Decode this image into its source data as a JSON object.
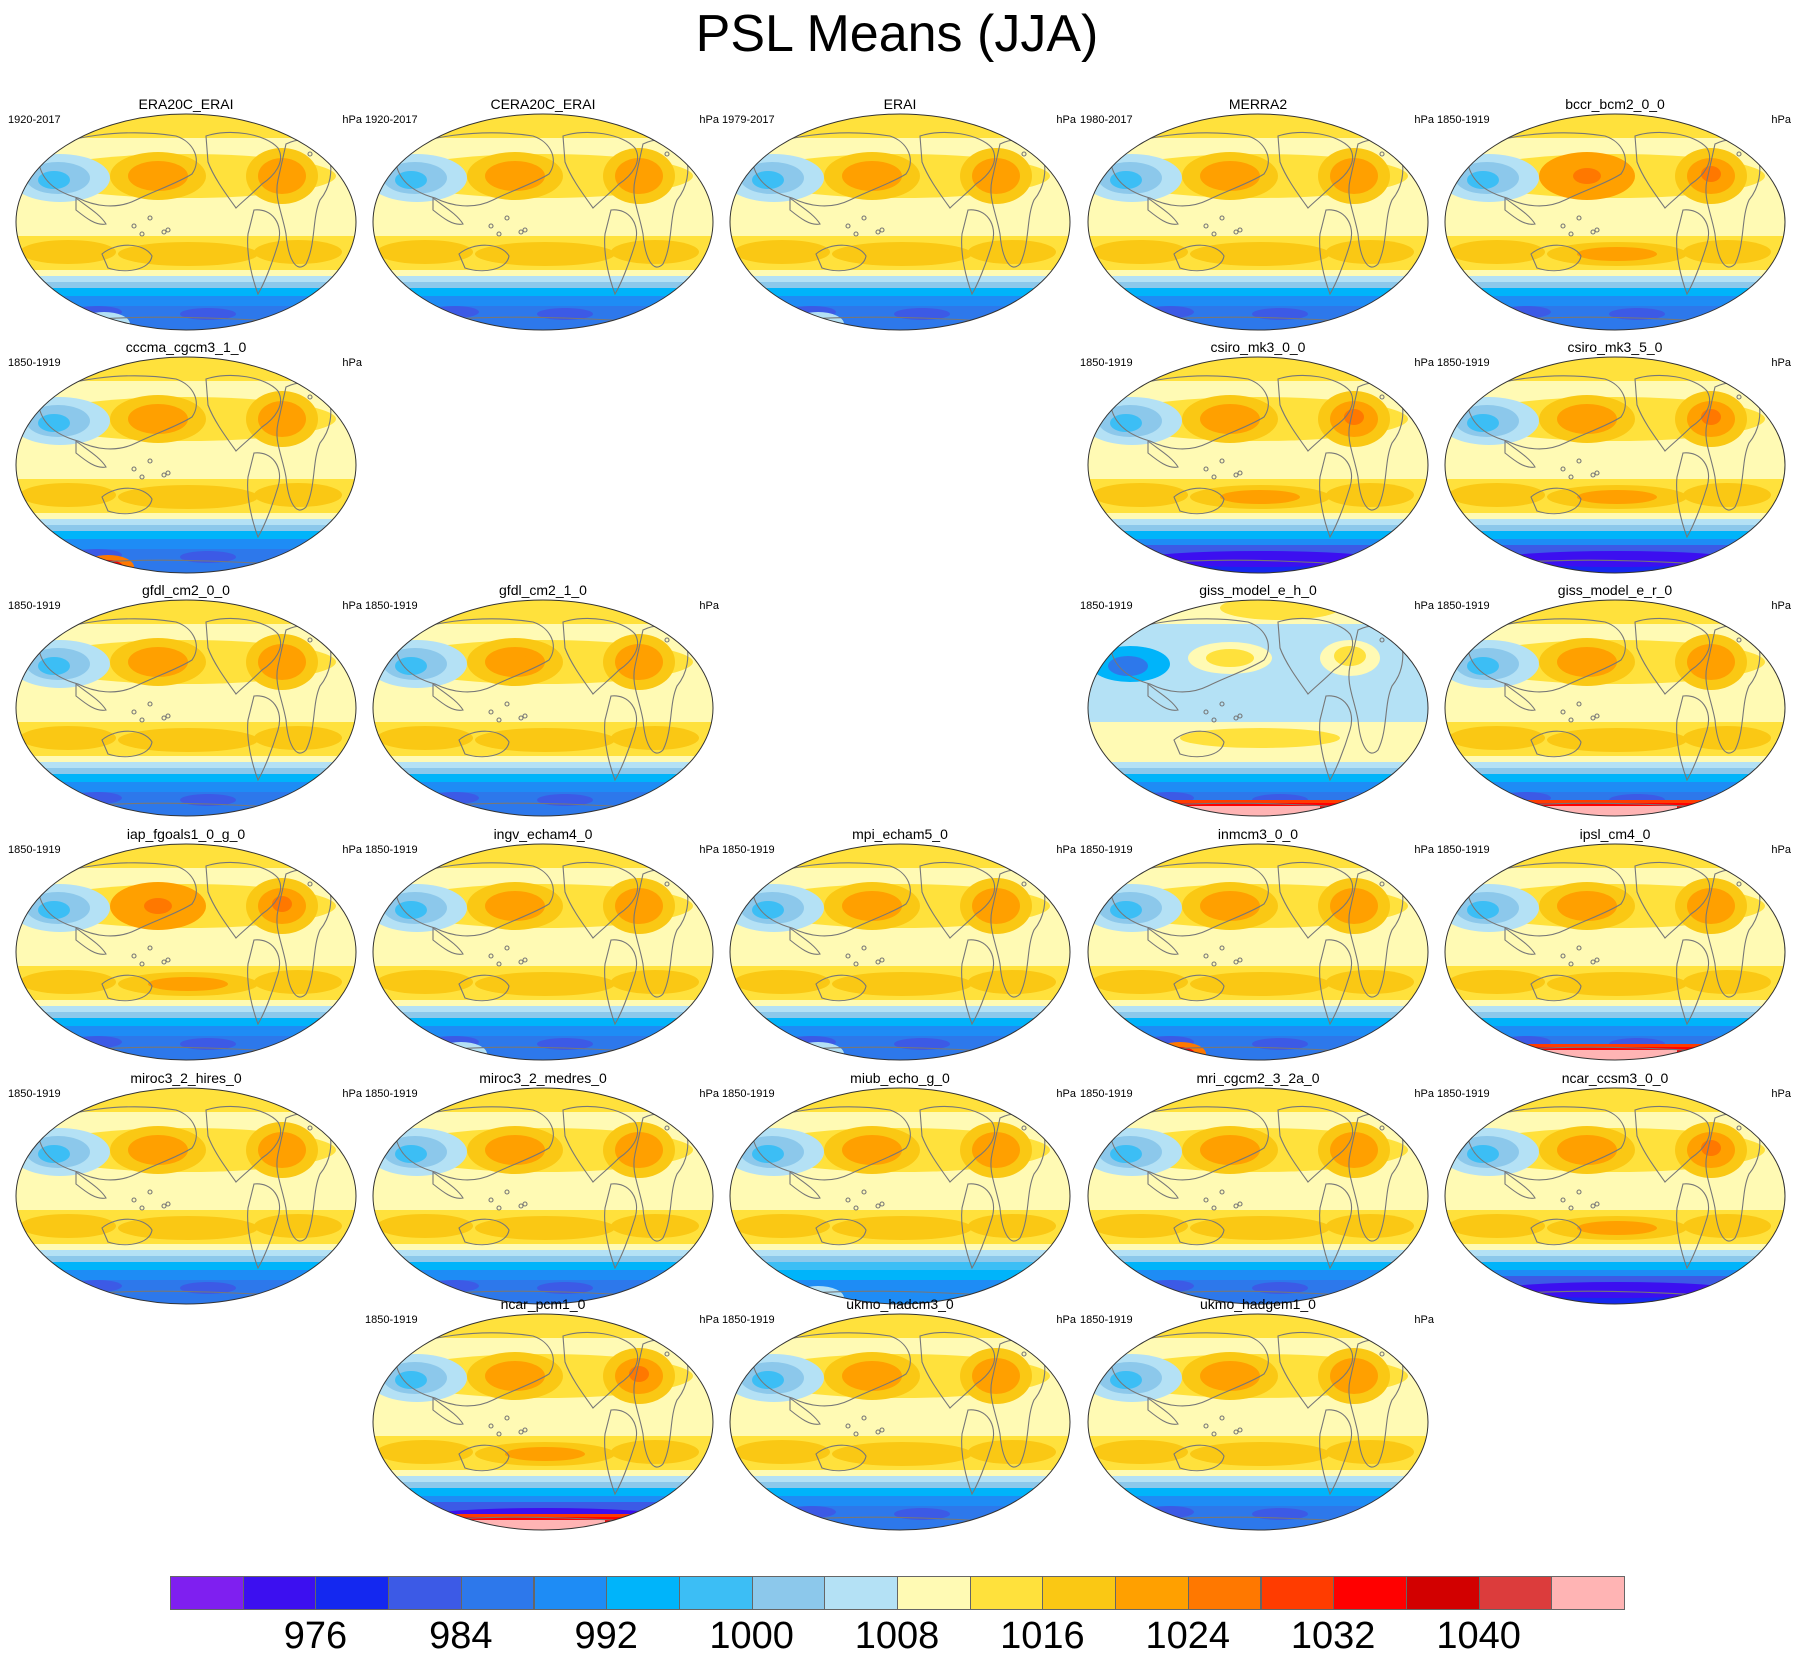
{
  "title": "PSL Means (JJA)",
  "units_label": "hPa",
  "panels": [
    {
      "name": "ERA20C_ERAI",
      "period": "1920-2017",
      "cell": [
        0,
        0
      ],
      "style": "obs",
      "ant": "light"
    },
    {
      "name": "CERA20C_ERAI",
      "period": "1920-2017",
      "cell": [
        0,
        1
      ],
      "style": "obs",
      "ant": "none"
    },
    {
      "name": "ERAI",
      "period": "1979-2017",
      "cell": [
        0,
        2
      ],
      "style": "obs",
      "ant": "light"
    },
    {
      "name": "MERRA2",
      "period": "1980-2017",
      "cell": [
        0,
        3
      ],
      "style": "obs",
      "ant": "none"
    },
    {
      "name": "bccr_bcm2_0_0",
      "period": "1850-1919",
      "cell": [
        0,
        4
      ],
      "style": "warm",
      "ant": "none"
    },
    {
      "name": "cccma_cgcm3_1_0",
      "period": "1850-1919",
      "cell": [
        1,
        0
      ],
      "style": "model",
      "ant": "red"
    },
    {
      "name": "csiro_mk3_0_0",
      "period": "1850-1919",
      "cell": [
        1,
        3
      ],
      "style": "deep",
      "ant": "none"
    },
    {
      "name": "csiro_mk3_5_0",
      "period": "1850-1919",
      "cell": [
        1,
        4
      ],
      "style": "deep",
      "ant": "none"
    },
    {
      "name": "gfdl_cm2_0_0",
      "period": "1850-1919",
      "cell": [
        2,
        0
      ],
      "style": "model",
      "ant": "none"
    },
    {
      "name": "gfdl_cm2_1_0",
      "period": "1850-1919",
      "cell": [
        2,
        1
      ],
      "style": "model",
      "ant": "none"
    },
    {
      "name": "giss_model_e_h_0",
      "period": "1850-1919",
      "cell": [
        2,
        3
      ],
      "style": "giss",
      "ant": "pink"
    },
    {
      "name": "giss_model_e_r_0",
      "period": "1850-1919",
      "cell": [
        2,
        4
      ],
      "style": "model",
      "ant": "pink"
    },
    {
      "name": "iap_fgoals1_0_g_0",
      "period": "1850-1919",
      "cell": [
        3,
        0
      ],
      "style": "warm",
      "ant": "none"
    },
    {
      "name": "ingv_echam4_0",
      "period": "1850-1919",
      "cell": [
        3,
        1
      ],
      "style": "model",
      "ant": "light"
    },
    {
      "name": "mpi_echam5_0",
      "period": "1850-1919",
      "cell": [
        3,
        2
      ],
      "style": "model",
      "ant": "light"
    },
    {
      "name": "inmcm3_0_0",
      "period": "1850-1919",
      "cell": [
        3,
        3
      ],
      "style": "model",
      "ant": "red"
    },
    {
      "name": "ipsl_cm4_0",
      "period": "1850-1919",
      "cell": [
        3,
        4
      ],
      "style": "model",
      "ant": "pink"
    },
    {
      "name": "miroc3_2_hires_0",
      "period": "1850-1919",
      "cell": [
        4,
        0
      ],
      "style": "model",
      "ant": "none"
    },
    {
      "name": "miroc3_2_medres_0",
      "period": "1850-1919",
      "cell": [
        4,
        1
      ],
      "style": "model",
      "ant": "none"
    },
    {
      "name": "miub_echo_g_0",
      "period": "1850-1919",
      "cell": [
        4,
        2
      ],
      "style": "pale",
      "ant": "light"
    },
    {
      "name": "mri_cgcm2_3_2a_0",
      "period": "1850-1919",
      "cell": [
        4,
        3
      ],
      "style": "model",
      "ant": "none"
    },
    {
      "name": "ncar_ccsm3_0_0",
      "period": "1850-1919",
      "cell": [
        4,
        4
      ],
      "style": "deep",
      "ant": "none"
    },
    {
      "name": "ncar_pcm1_0",
      "period": "1850-1919",
      "cell": [
        5,
        1
      ],
      "style": "deep",
      "ant": "pink"
    },
    {
      "name": "ukmo_hadcm3_0",
      "period": "1850-1919",
      "cell": [
        5,
        2
      ],
      "style": "model",
      "ant": "none"
    },
    {
      "name": "ukmo_hadgem1_0",
      "period": "1850-1919",
      "cell": [
        5,
        3
      ],
      "style": "model",
      "ant": "none"
    }
  ],
  "colorbar": {
    "colors": [
      "#7f1ff0",
      "#3c0ff0",
      "#1428f0",
      "#3c5ae6",
      "#2d78eb",
      "#1e8cf5",
      "#00b4fa",
      "#3cbef5",
      "#8cc8eb",
      "#b4e1f5",
      "#fffab4",
      "#ffe13c",
      "#fac814",
      "#ffa000",
      "#ff7800",
      "#ff3c00",
      "#ff0000",
      "#d20000",
      "#dc3c3c",
      "#ffb4b4"
    ],
    "labels": [
      {
        "text": "976",
        "index": 2
      },
      {
        "text": "984",
        "index": 4
      },
      {
        "text": "992",
        "index": 6
      },
      {
        "text": "1000",
        "index": 8
      },
      {
        "text": "1008",
        "index": 10
      },
      {
        "text": "1016",
        "index": 12
      },
      {
        "text": "1024",
        "index": 14
      },
      {
        "text": "1032",
        "index": 16
      },
      {
        "text": "1040",
        "index": 18
      }
    ]
  }
}
